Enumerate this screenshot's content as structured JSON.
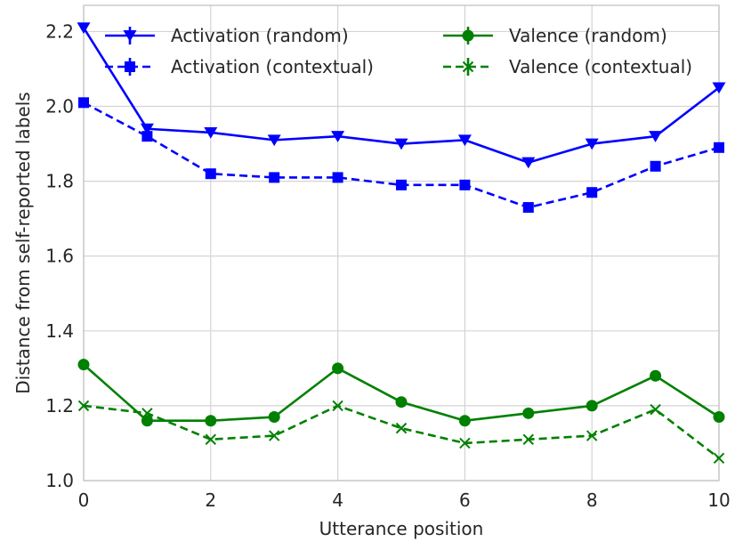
{
  "chart_data": {
    "type": "line",
    "title": "",
    "xlabel": "Utterance position",
    "ylabel": "Distance from self-reported labels",
    "xlim": [
      0,
      10
    ],
    "ylim": [
      1.0,
      2.27
    ],
    "xticks": [
      0,
      2,
      4,
      6,
      8,
      10
    ],
    "xtick_labels": [
      "0",
      "2",
      "4",
      "6",
      "8",
      "10"
    ],
    "yticks": [
      1.0,
      1.2,
      1.4,
      1.6,
      1.8,
      2.0,
      2.2
    ],
    "ytick_labels": [
      "1.0",
      "1.2",
      "1.4",
      "1.6",
      "1.8",
      "2.0",
      "2.2"
    ],
    "grid": true,
    "legend_position": "top",
    "x": [
      0,
      1,
      2,
      3,
      4,
      5,
      6,
      7,
      8,
      9,
      10
    ],
    "series": [
      {
        "name": "Activation (random)",
        "color": "#0000ff",
        "marker": "triangle-down",
        "dashed": false,
        "values": [
          2.21,
          1.94,
          1.93,
          1.91,
          1.92,
          1.9,
          1.91,
          1.85,
          1.9,
          1.92,
          2.05
        ]
      },
      {
        "name": "Activation (contextual)",
        "color": "#0000ff",
        "marker": "square",
        "dashed": true,
        "values": [
          2.01,
          1.92,
          1.82,
          1.81,
          1.81,
          1.79,
          1.79,
          1.73,
          1.77,
          1.84,
          1.89
        ]
      },
      {
        "name": "Valence (random)",
        "color": "#008000",
        "marker": "circle",
        "dashed": false,
        "values": [
          1.31,
          1.16,
          1.16,
          1.17,
          1.3,
          1.21,
          1.16,
          1.18,
          1.2,
          1.28,
          1.17
        ]
      },
      {
        "name": "Valence (contextual)",
        "color": "#008000",
        "marker": "x",
        "dashed": true,
        "values": [
          1.2,
          1.18,
          1.11,
          1.12,
          1.2,
          1.14,
          1.1,
          1.11,
          1.12,
          1.19,
          1.06
        ]
      }
    ]
  }
}
